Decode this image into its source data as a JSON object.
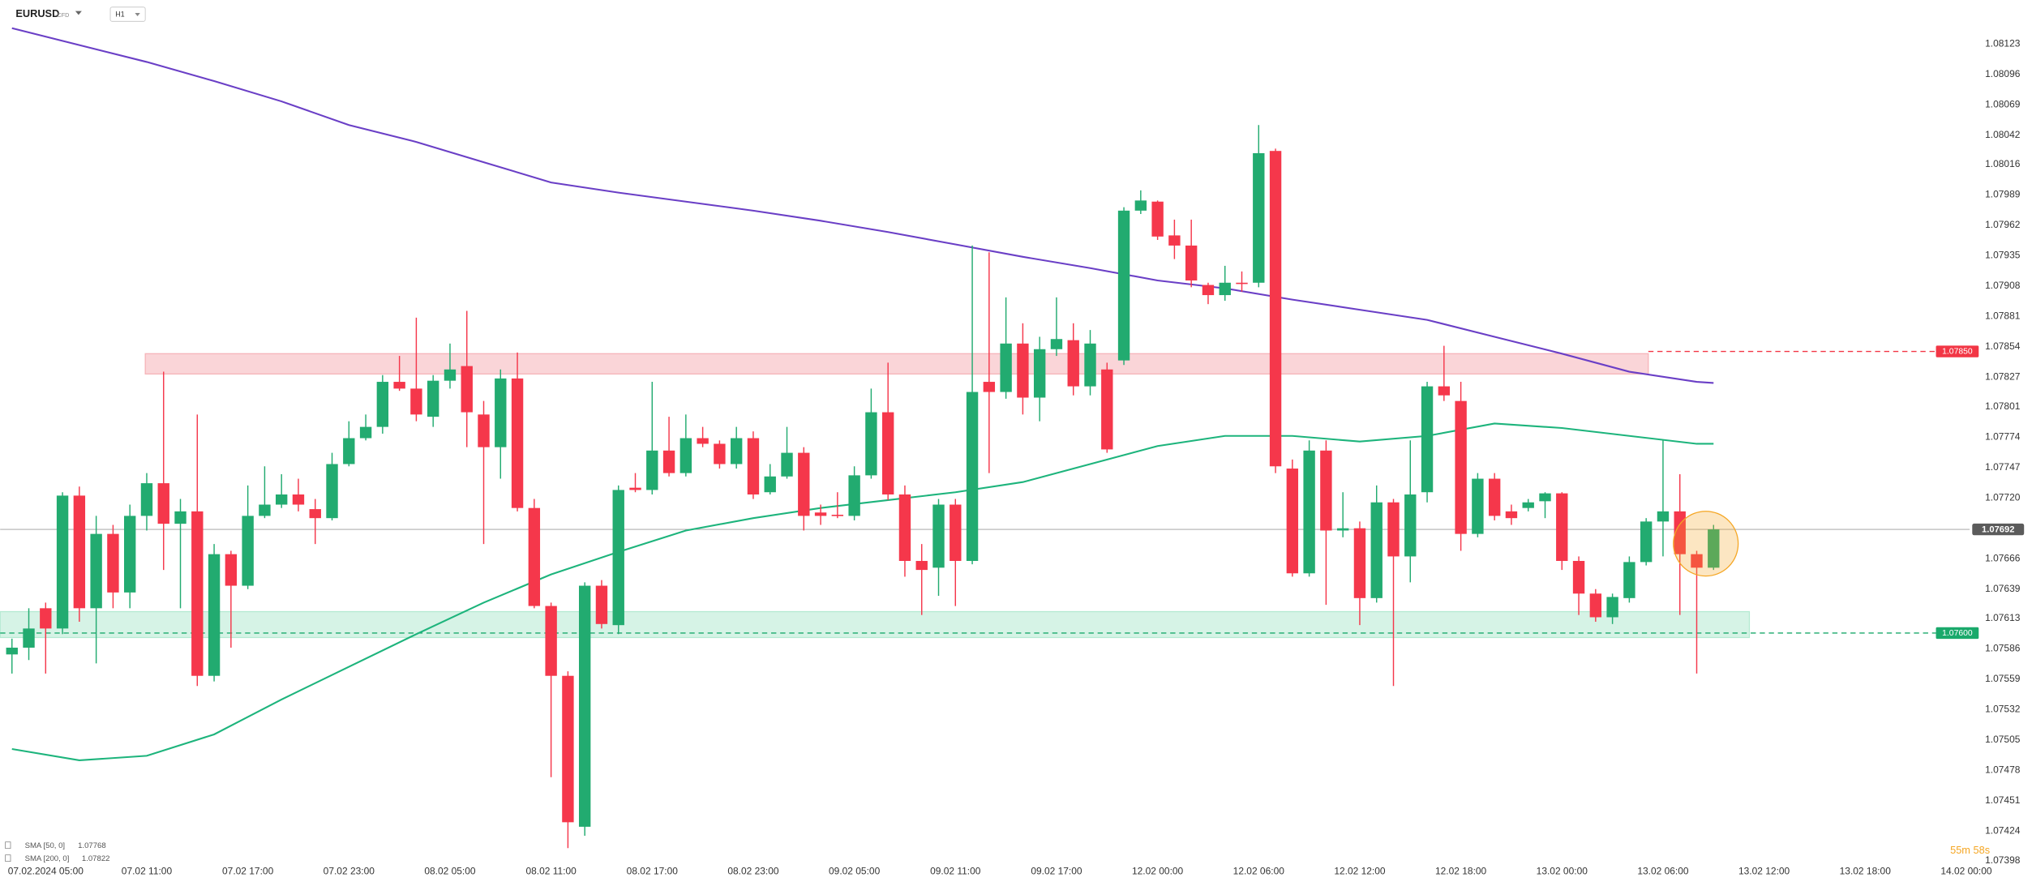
{
  "header": {
    "symbol": "EURUSD",
    "instrument_type": "CFD",
    "timeframe": "H1"
  },
  "chart_data": {
    "type": "candlestick",
    "up_color": "#22ab70",
    "down_color": "#f5374b",
    "candles": {
      "open": [
        1.07581,
        1.07587,
        1.07622,
        1.07604,
        1.07722,
        1.07622,
        1.07688,
        1.07636,
        1.07704,
        1.07733,
        1.07697,
        1.07708,
        1.07562,
        1.0767,
        1.07642,
        1.07704,
        1.07714,
        1.07723,
        1.0771,
        1.07702,
        1.0775,
        1.07773,
        1.07783,
        1.07823,
        1.07817,
        1.07792,
        1.07824,
        1.07837,
        1.07794,
        1.07765,
        1.07826,
        1.07711,
        1.07624,
        1.07562,
        1.07428,
        1.07642,
        1.07607,
        1.07729,
        1.07727,
        1.07762,
        1.07742,
        1.07773,
        1.07768,
        1.0775,
        1.07773,
        1.07725,
        1.07739,
        1.0776,
        1.07707,
        1.07705,
        1.07704,
        1.0774,
        1.07796,
        1.07723,
        1.07664,
        1.07658,
        1.07714,
        1.07664,
        1.07823,
        1.07814,
        1.07857,
        1.07809,
        1.07852,
        1.0786,
        1.07819,
        1.07834,
        1.07842,
        1.07975,
        1.07983,
        1.07953,
        1.07944,
        1.07909,
        1.079,
        1.07911,
        1.07911,
        1.08028,
        1.07746,
        1.07653,
        1.07762,
        1.07691,
        1.07693,
        1.07631,
        1.07716,
        1.07668,
        1.07725,
        1.07819,
        1.07806,
        1.07688,
        1.07737,
        1.07708,
        1.07711,
        1.07717,
        1.07724,
        1.07664,
        1.07635,
        1.07614,
        1.07631,
        1.07663,
        1.07699,
        1.07708,
        1.0767,
        1.07658
      ],
      "high": [
        1.07595,
        1.07622,
        1.07627,
        1.07725,
        1.0773,
        1.07704,
        1.07696,
        1.07714,
        1.07742,
        1.07832,
        1.07719,
        1.07794,
        1.07679,
        1.07673,
        1.07731,
        1.07748,
        1.07741,
        1.07737,
        1.07719,
        1.0776,
        1.07788,
        1.07794,
        1.07829,
        1.07846,
        1.0788,
        1.07829,
        1.07857,
        1.07886,
        1.07806,
        1.07834,
        1.07849,
        1.07719,
        1.07627,
        1.07566,
        1.07645,
        1.07647,
        1.07731,
        1.07742,
        1.07823,
        1.07792,
        1.07794,
        1.07783,
        1.07771,
        1.07783,
        1.07779,
        1.0775,
        1.07783,
        1.07765,
        1.07714,
        1.07725,
        1.07748,
        1.07817,
        1.0784,
        1.07731,
        1.07679,
        1.07719,
        1.07719,
        1.07944,
        1.07938,
        1.07898,
        1.07875,
        1.07863,
        1.07898,
        1.07875,
        1.07869,
        1.0784,
        1.07978,
        1.07993,
        1.07984,
        1.07967,
        1.07967,
        1.07911,
        1.07926,
        1.07921,
        1.08051,
        1.0803,
        1.07754,
        1.07771,
        1.07771,
        1.07725,
        1.07699,
        1.07731,
        1.07719,
        1.07771,
        1.07823,
        1.07855,
        1.07823,
        1.07742,
        1.07742,
        1.07714,
        1.07719,
        1.07725,
        1.07725,
        1.07668,
        1.07639,
        1.07635,
        1.07668,
        1.07702,
        1.07771,
        1.07741,
        1.07673,
        1.07696
      ],
      "low": [
        1.07564,
        1.07576,
        1.07564,
        1.07599,
        1.0761,
        1.07573,
        1.07622,
        1.07622,
        1.07691,
        1.07656,
        1.07622,
        1.07553,
        1.07557,
        1.07587,
        1.07639,
        1.07702,
        1.07711,
        1.07708,
        1.07679,
        1.077,
        1.07748,
        1.07771,
        1.07777,
        1.07815,
        1.07788,
        1.07783,
        1.07817,
        1.07765,
        1.07679,
        1.07737,
        1.07708,
        1.07622,
        1.07472,
        1.07409,
        1.0742,
        1.07604,
        1.07599,
        1.07725,
        1.07723,
        1.07739,
        1.07739,
        1.07765,
        1.07746,
        1.07746,
        1.07719,
        1.07723,
        1.07737,
        1.07691,
        1.07696,
        1.07702,
        1.077,
        1.07737,
        1.07718,
        1.0765,
        1.07616,
        1.07633,
        1.07624,
        1.07661,
        1.07742,
        1.07808,
        1.07794,
        1.07788,
        1.07846,
        1.07811,
        1.07811,
        1.0776,
        1.07838,
        1.07972,
        1.07949,
        1.07932,
        1.07907,
        1.07892,
        1.07895,
        1.07903,
        1.07907,
        1.07742,
        1.0765,
        1.0765,
        1.07625,
        1.07685,
        1.07607,
        1.07627,
        1.07553,
        1.07645,
        1.07716,
        1.07806,
        1.07673,
        1.07685,
        1.077,
        1.07696,
        1.07708,
        1.07702,
        1.07656,
        1.07616,
        1.0761,
        1.07608,
        1.07627,
        1.0766,
        1.07668,
        1.07616,
        1.07564,
        1.07656
      ],
      "close": [
        1.07587,
        1.07604,
        1.07604,
        1.07722,
        1.07622,
        1.07688,
        1.07636,
        1.07704,
        1.07733,
        1.07697,
        1.07708,
        1.07562,
        1.0767,
        1.07642,
        1.07704,
        1.07714,
        1.07723,
        1.07714,
        1.07702,
        1.0775,
        1.07773,
        1.07783,
        1.07823,
        1.07817,
        1.07794,
        1.07824,
        1.07834,
        1.07796,
        1.07765,
        1.07826,
        1.07711,
        1.07624,
        1.07562,
        1.07432,
        1.07642,
        1.07608,
        1.07727,
        1.07727,
        1.07762,
        1.07742,
        1.07773,
        1.07768,
        1.0775,
        1.07773,
        1.07723,
        1.07739,
        1.0776,
        1.07704,
        1.07704,
        1.07704,
        1.0774,
        1.07796,
        1.07723,
        1.07664,
        1.07656,
        1.07714,
        1.07664,
        1.07814,
        1.07814,
        1.07857,
        1.07809,
        1.07852,
        1.07861,
        1.07819,
        1.07857,
        1.07763,
        1.07975,
        1.07984,
        1.07952,
        1.07944,
        1.07913,
        1.079,
        1.07911,
        1.0791,
        1.08026,
        1.07748,
        1.07653,
        1.07762,
        1.07691,
        1.07693,
        1.07631,
        1.07716,
        1.07668,
        1.07723,
        1.07819,
        1.07811,
        1.07688,
        1.07737,
        1.07704,
        1.07702,
        1.07716,
        1.07724,
        1.07664,
        1.07635,
        1.07614,
        1.07632,
        1.07663,
        1.07699,
        1.07708,
        1.0767,
        1.07658,
        1.07692
      ]
    },
    "sma": [
      {
        "name": "SMA [50, 0]",
        "color": "#1db47c",
        "last_value": 1.07768,
        "x": [
          0,
          4,
          8,
          12,
          16,
          20,
          24,
          28,
          32,
          36,
          40,
          44,
          48,
          52,
          56,
          60,
          64,
          68,
          72,
          76,
          80,
          84,
          88,
          92,
          96,
          100,
          101
        ],
        "values": [
          1.07497,
          1.07487,
          1.07491,
          1.0751,
          1.07541,
          1.0757,
          1.07599,
          1.07627,
          1.07652,
          1.07672,
          1.07691,
          1.07702,
          1.07711,
          1.07718,
          1.07725,
          1.07734,
          1.0775,
          1.07766,
          1.07775,
          1.07775,
          1.0777,
          1.07775,
          1.07786,
          1.07782,
          1.07775,
          1.07768,
          1.07768
        ]
      },
      {
        "name": "SMA [200, 0]",
        "color": "#6a3fc6",
        "last_value": 1.07822,
        "x": [
          0,
          4,
          8,
          12,
          16,
          20,
          24,
          28,
          32,
          36,
          40,
          44,
          48,
          52,
          56,
          60,
          64,
          68,
          72,
          76,
          80,
          84,
          88,
          92,
          96,
          100,
          101
        ],
        "values": [
          1.08137,
          1.08122,
          1.08107,
          1.0809,
          1.08072,
          1.08051,
          1.08036,
          1.08018,
          1.08,
          1.07991,
          1.07983,
          1.07975,
          1.07966,
          1.07956,
          1.07945,
          1.07934,
          1.07924,
          1.07913,
          1.07906,
          1.07896,
          1.07887,
          1.07878,
          1.07863,
          1.07848,
          1.07832,
          1.07823,
          1.07822
        ]
      }
    ],
    "current_price": 1.07692,
    "levels": [
      {
        "value": 1.0785,
        "label": "1.07850",
        "color": "#f23645"
      },
      {
        "value": 1.076,
        "label": "1.07600",
        "color": "#1aa96b"
      }
    ],
    "zones": [
      {
        "from": 1.07848,
        "to": 1.0783,
        "color": "#f6b3b8"
      },
      {
        "from": 1.07619,
        "to": 1.07596,
        "color": "#b4ead2"
      }
    ],
    "countdown": "55m 58s",
    "xlim": [
      -0.7,
      116.2
    ],
    "xticks": [
      {
        "value": 2,
        "label": "07.02.2024 05:00"
      },
      {
        "value": 8,
        "label": "07.02 11:00"
      },
      {
        "value": 14,
        "label": "07.02 17:00"
      },
      {
        "value": 20,
        "label": "07.02 23:00"
      },
      {
        "value": 26,
        "label": "08.02 05:00"
      },
      {
        "value": 32,
        "label": "08.02 11:00"
      },
      {
        "value": 38,
        "label": "08.02 17:00"
      },
      {
        "value": 44,
        "label": "08.02 23:00"
      },
      {
        "value": 50,
        "label": "09.02 05:00"
      },
      {
        "value": 56,
        "label": "09.02 11:00"
      },
      {
        "value": 62,
        "label": "09.02 17:00"
      },
      {
        "value": 68,
        "label": "12.02 00:00"
      },
      {
        "value": 74,
        "label": "12.02 06:00"
      },
      {
        "value": 80,
        "label": "12.02 12:00"
      },
      {
        "value": 86,
        "label": "12.02 18:00"
      },
      {
        "value": 92,
        "label": "13.02 00:00"
      },
      {
        "value": 98,
        "label": "13.02 06:00"
      },
      {
        "value": 104,
        "label": "13.02 12:00"
      },
      {
        "value": 110,
        "label": "13.02 18:00"
      },
      {
        "value": 116,
        "label": "14.02 00:00"
      }
    ],
    "ylim": [
      1.0738,
      1.08162
    ],
    "yticks": [
      1.08123,
      1.08096,
      1.08069,
      1.08042,
      1.08016,
      1.07989,
      1.07962,
      1.07935,
      1.07908,
      1.07881,
      1.07854,
      1.07827,
      1.07801,
      1.07774,
      1.07747,
      {
        "value": 1.0772,
        "label": "1.07720"
      },
      1.07666,
      1.07639,
      1.07613,
      1.07586,
      1.07559,
      1.07532,
      1.07505,
      1.07478,
      1.07451,
      1.07424,
      1.07398
    ]
  }
}
